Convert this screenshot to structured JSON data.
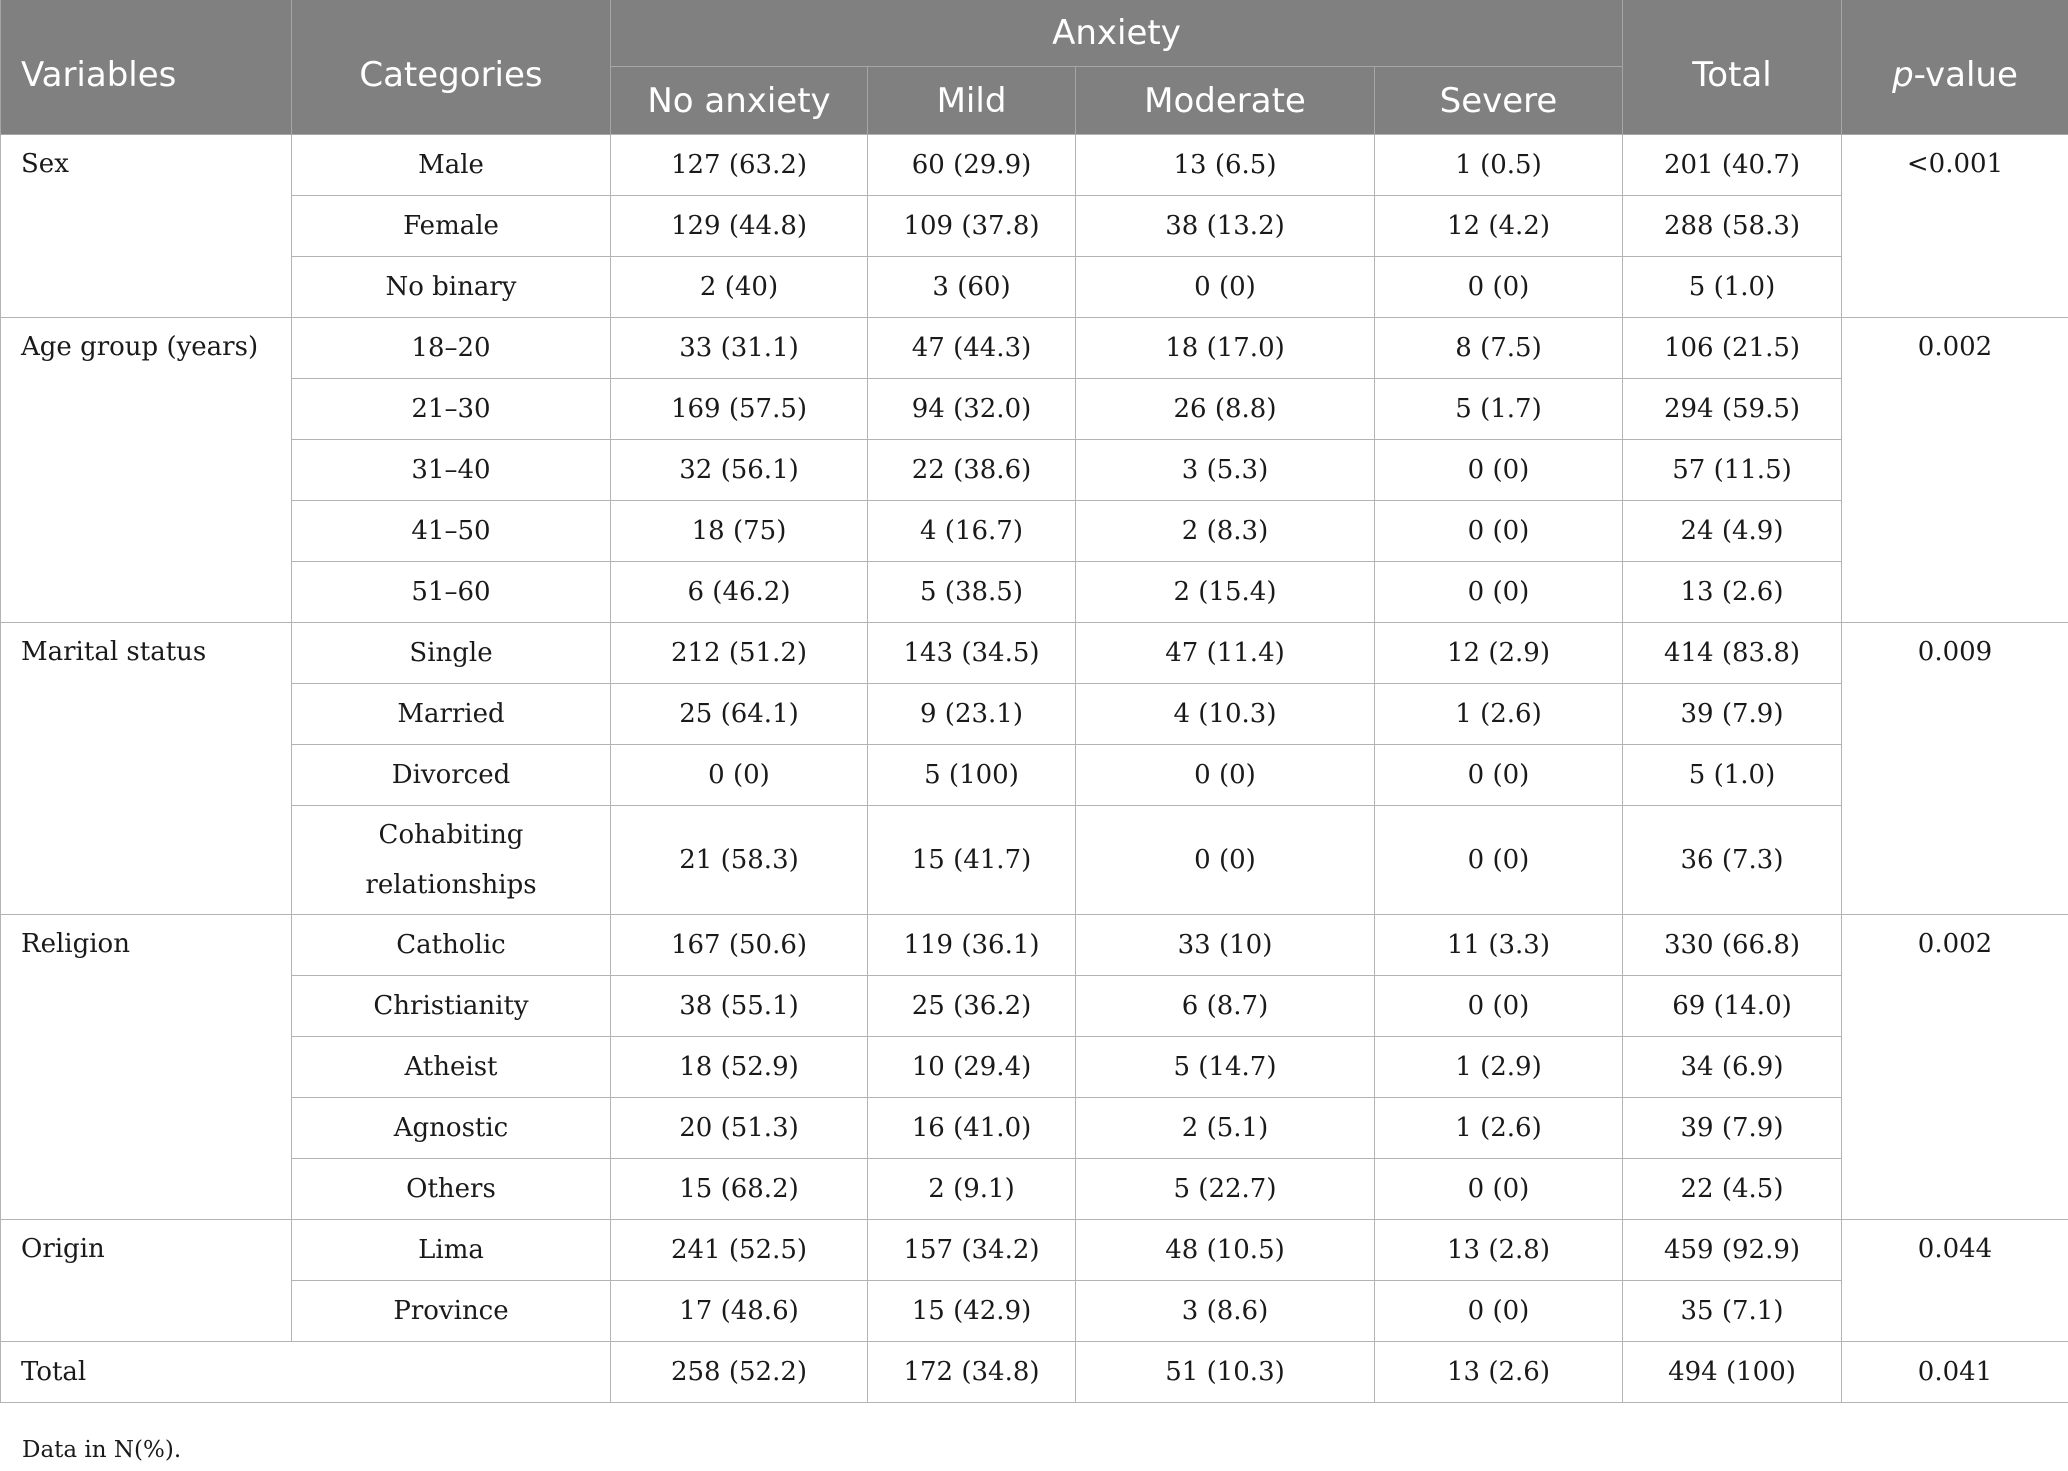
{
  "header": {
    "variables": "Variables",
    "categories": "Categories",
    "anxiety": "Anxiety",
    "no_anxiety": "No anxiety",
    "mild": "Mild",
    "moderate": "Moderate",
    "severe": "Severe",
    "total": "Total",
    "p_prefix": "p",
    "p_suffix": "-value"
  },
  "groups": [
    {
      "variable": "Sex",
      "p_value": "<0.001",
      "rows": [
        {
          "category": "Male",
          "no_anxiety": "127 (63.2)",
          "mild": "60 (29.9)",
          "moderate": "13 (6.5)",
          "severe": "1 (0.5)",
          "total": "201 (40.7)"
        },
        {
          "category": "Female",
          "no_anxiety": "129 (44.8)",
          "mild": "109 (37.8)",
          "moderate": "38 (13.2)",
          "severe": "12 (4.2)",
          "total": "288 (58.3)"
        },
        {
          "category": "No binary",
          "no_anxiety": "2 (40)",
          "mild": "3 (60)",
          "moderate": "0 (0)",
          "severe": "0 (0)",
          "total": "5 (1.0)"
        }
      ]
    },
    {
      "variable": "Age group (years)",
      "p_value": "0.002",
      "rows": [
        {
          "category": "18–20",
          "no_anxiety": "33 (31.1)",
          "mild": "47 (44.3)",
          "moderate": "18 (17.0)",
          "severe": "8 (7.5)",
          "total": "106 (21.5)"
        },
        {
          "category": "21–30",
          "no_anxiety": "169 (57.5)",
          "mild": "94 (32.0)",
          "moderate": "26 (8.8)",
          "severe": "5 (1.7)",
          "total": "294 (59.5)"
        },
        {
          "category": "31–40",
          "no_anxiety": "32 (56.1)",
          "mild": "22 (38.6)",
          "moderate": "3 (5.3)",
          "severe": "0 (0)",
          "total": "57 (11.5)"
        },
        {
          "category": "41–50",
          "no_anxiety": "18 (75)",
          "mild": "4 (16.7)",
          "moderate": "2 (8.3)",
          "severe": "0 (0)",
          "total": "24 (4.9)"
        },
        {
          "category": "51–60",
          "no_anxiety": "6 (46.2)",
          "mild": "5 (38.5)",
          "moderate": "2 (15.4)",
          "severe": "0 (0)",
          "total": "13 (2.6)"
        }
      ]
    },
    {
      "variable": "Marital status",
      "p_value": "0.009",
      "rows": [
        {
          "category": "Single",
          "no_anxiety": "212 (51.2)",
          "mild": "143 (34.5)",
          "moderate": "47 (11.4)",
          "severe": "12 (2.9)",
          "total": "414 (83.8)"
        },
        {
          "category": "Married",
          "no_anxiety": "25 (64.1)",
          "mild": "9 (23.1)",
          "moderate": "4 (10.3)",
          "severe": "1 (2.6)",
          "total": "39 (7.9)"
        },
        {
          "category": "Divorced",
          "no_anxiety": "0 (0)",
          "mild": "5 (100)",
          "moderate": "0 (0)",
          "severe": "0 (0)",
          "total": "5 (1.0)"
        },
        {
          "category": "Cohabiting relationships",
          "no_anxiety": "21 (58.3)",
          "mild": "15 (41.7)",
          "moderate": "0 (0)",
          "severe": "0 (0)",
          "total": "36 (7.3)"
        }
      ]
    },
    {
      "variable": "Religion",
      "p_value": "0.002",
      "rows": [
        {
          "category": "Catholic",
          "no_anxiety": "167 (50.6)",
          "mild": "119 (36.1)",
          "moderate": "33 (10)",
          "severe": "11 (3.3)",
          "total": "330 (66.8)"
        },
        {
          "category": "Christianity",
          "no_anxiety": "38 (55.1)",
          "mild": "25 (36.2)",
          "moderate": "6 (8.7)",
          "severe": "0 (0)",
          "total": "69 (14.0)"
        },
        {
          "category": "Atheist",
          "no_anxiety": "18 (52.9)",
          "mild": "10 (29.4)",
          "moderate": "5 (14.7)",
          "severe": "1 (2.9)",
          "total": "34 (6.9)"
        },
        {
          "category": "Agnostic",
          "no_anxiety": "20 (51.3)",
          "mild": "16 (41.0)",
          "moderate": "2 (5.1)",
          "severe": "1 (2.6)",
          "total": "39 (7.9)"
        },
        {
          "category": "Others",
          "no_anxiety": "15 (68.2)",
          "mild": "2 (9.1)",
          "moderate": "5 (22.7)",
          "severe": "0 (0)",
          "total": "22 (4.5)"
        }
      ]
    },
    {
      "variable": "Origin",
      "p_value": "0.044",
      "rows": [
        {
          "category": "Lima",
          "no_anxiety": "241 (52.5)",
          "mild": "157 (34.2)",
          "moderate": "48 (10.5)",
          "severe": "13 (2.8)",
          "total": "459 (92.9)"
        },
        {
          "category": "Province",
          "no_anxiety": "17 (48.6)",
          "mild": "15 (42.9)",
          "moderate": "3 (8.6)",
          "severe": "0 (0)",
          "total": "35 (7.1)"
        }
      ]
    }
  ],
  "total_row": {
    "label": "Total",
    "no_anxiety": "258 (52.2)",
    "mild": "172 (34.8)",
    "moderate": "51 (10.3)",
    "severe": "13 (2.6)",
    "total": "494 (100)",
    "p_value": "0.041"
  },
  "footnote": "Data in N(%)."
}
